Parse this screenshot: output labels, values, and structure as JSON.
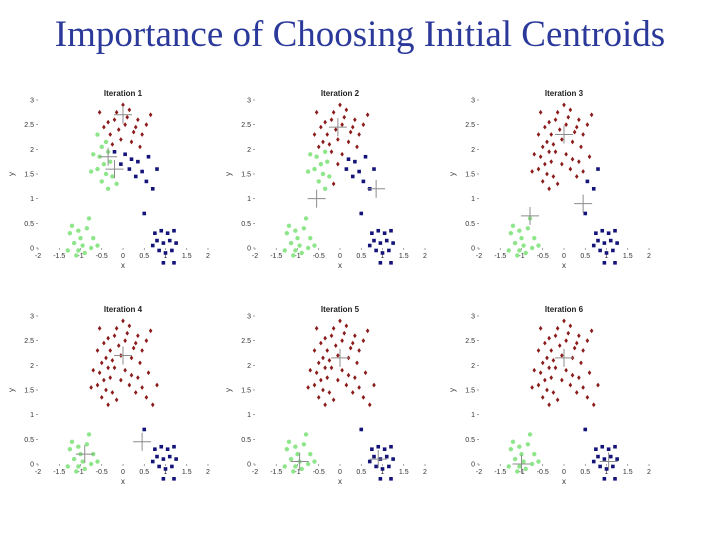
{
  "slide": {
    "title": "Importance of Choosing Initial Centroids"
  },
  "colors": {
    "red": "#8b1a1a",
    "green": "#8fe68a",
    "blue": "#13137a",
    "centroid": "#8c8c8c",
    "title": "#2b3a9a"
  },
  "chart_data": [
    {
      "type": "scatter",
      "title": "Iteration 1",
      "xlabel": "x",
      "ylabel": "y",
      "xlim": [
        -2,
        2
      ],
      "ylim": [
        0,
        3
      ],
      "xticks": [
        "-2",
        "-1.5",
        "-1",
        "-0.5",
        "0",
        "0.5",
        "1",
        "1.5",
        "2"
      ],
      "yticks": [
        "0",
        "0.5",
        "1",
        "1.5",
        "2",
        "2.5",
        "3"
      ],
      "assignment": "iter1",
      "centroids": [
        {
          "x": 0.0,
          "y": 2.7,
          "color": "red"
        },
        {
          "x": -0.35,
          "y": 1.85,
          "color": "green"
        },
        {
          "x": -0.2,
          "y": 1.6,
          "color": "blue"
        }
      ]
    },
    {
      "type": "scatter",
      "title": "Iteration 2",
      "xlabel": "x",
      "ylabel": "y",
      "xlim": [
        -2,
        2
      ],
      "ylim": [
        0,
        3
      ],
      "xticks": [
        "-2",
        "-1.5",
        "-1",
        "-0.5",
        "0",
        "0.5",
        "1",
        "1.5",
        "2"
      ],
      "yticks": [
        "0",
        "0.5",
        "1",
        "1.5",
        "2",
        "2.5",
        "3"
      ],
      "assignment": "iter2",
      "centroids": [
        {
          "x": -0.05,
          "y": 2.45,
          "color": "red"
        },
        {
          "x": -0.55,
          "y": 1.0,
          "color": "green"
        },
        {
          "x": 0.85,
          "y": 1.2,
          "color": "blue"
        }
      ]
    },
    {
      "type": "scatter",
      "title": "Iteration 3",
      "xlabel": "x",
      "ylabel": "y",
      "xlim": [
        -2,
        2
      ],
      "ylim": [
        0,
        3
      ],
      "xticks": [
        "-2",
        "-1.5",
        "-1",
        "-0.5",
        "0",
        "0.5",
        "1",
        "1.5",
        "2"
      ],
      "yticks": [
        "0",
        "0.5",
        "1",
        "1.5",
        "2",
        "2.5",
        "3"
      ],
      "assignment": "iter3",
      "centroids": [
        {
          "x": 0.0,
          "y": 2.3,
          "color": "red"
        },
        {
          "x": -0.8,
          "y": 0.65,
          "color": "green"
        },
        {
          "x": 0.45,
          "y": 0.9,
          "color": "blue"
        }
      ]
    },
    {
      "type": "scatter",
      "title": "Iteration 4",
      "xlabel": "x",
      "ylabel": "y",
      "xlim": [
        -2,
        2
      ],
      "ylim": [
        0,
        3
      ],
      "xticks": [
        "-2",
        "-1.5",
        "-1",
        "-0.5",
        "0",
        "0.5",
        "1",
        "1.5",
        "2"
      ],
      "yticks": [
        "0",
        "0.5",
        "1",
        "1.5",
        "2",
        "2.5",
        "3"
      ],
      "assignment": "final",
      "centroids": [
        {
          "x": 0.0,
          "y": 2.2,
          "color": "red"
        },
        {
          "x": -0.9,
          "y": 0.2,
          "color": "green"
        },
        {
          "x": 0.45,
          "y": 0.45,
          "color": "blue"
        }
      ]
    },
    {
      "type": "scatter",
      "title": "Iteration 5",
      "xlabel": "x",
      "ylabel": "y",
      "xlim": [
        -2,
        2
      ],
      "ylim": [
        0,
        3
      ],
      "xticks": [
        "-2",
        "-1.5",
        "-1",
        "-0.5",
        "0",
        "0.5",
        "1",
        "1.5",
        "2"
      ],
      "yticks": [
        "0",
        "0.5",
        "1",
        "1.5",
        "2",
        "2.5",
        "3"
      ],
      "assignment": "final",
      "centroids": [
        {
          "x": 0.0,
          "y": 2.15,
          "color": "red"
        },
        {
          "x": -0.95,
          "y": 0.05,
          "color": "green"
        },
        {
          "x": 0.9,
          "y": 0.1,
          "color": "blue"
        }
      ]
    },
    {
      "type": "scatter",
      "title": "Iteration 6",
      "xlabel": "x",
      "ylabel": "y",
      "xlim": [
        -2,
        2
      ],
      "ylim": [
        0,
        3
      ],
      "xticks": [
        "-2",
        "-1.5",
        "-1",
        "-0.5",
        "0",
        "0.5",
        "1",
        "1.5",
        "2"
      ],
      "yticks": [
        "0",
        "0.5",
        "1",
        "1.5",
        "2",
        "2.5",
        "3"
      ],
      "assignment": "final",
      "centroids": [
        {
          "x": 0.0,
          "y": 2.15,
          "color": "red"
        },
        {
          "x": -1.0,
          "y": 0.0,
          "color": "green"
        },
        {
          "x": 1.05,
          "y": 0.05,
          "color": "blue"
        }
      ]
    }
  ],
  "points": [
    {
      "x": -0.15,
      "y": 2.75,
      "iter1": "red",
      "iter2": "red",
      "iter3": "red",
      "final": "red"
    },
    {
      "x": 0.15,
      "y": 2.8,
      "iter1": "red",
      "iter2": "red",
      "iter3": "red",
      "final": "red"
    },
    {
      "x": 0.35,
      "y": 2.6,
      "iter1": "red",
      "iter2": "red",
      "iter3": "red",
      "final": "red"
    },
    {
      "x": -0.35,
      "y": 2.55,
      "iter1": "red",
      "iter2": "red",
      "iter3": "red",
      "final": "red"
    },
    {
      "x": 0.05,
      "y": 2.5,
      "iter1": "red",
      "iter2": "red",
      "iter3": "red",
      "final": "red"
    },
    {
      "x": -0.1,
      "y": 2.4,
      "iter1": "red",
      "iter2": "red",
      "iter3": "red",
      "final": "red"
    },
    {
      "x": 0.25,
      "y": 2.35,
      "iter1": "red",
      "iter2": "red",
      "iter3": "red",
      "final": "red"
    },
    {
      "x": -0.3,
      "y": 2.3,
      "iter1": "red",
      "iter2": "red",
      "iter3": "red",
      "final": "red"
    },
    {
      "x": 0.45,
      "y": 2.3,
      "iter1": "red",
      "iter2": "red",
      "iter3": "red",
      "final": "red"
    },
    {
      "x": -0.2,
      "y": 2.6,
      "iter1": "red",
      "iter2": "red",
      "iter3": "red",
      "final": "red"
    },
    {
      "x": 0.1,
      "y": 2.65,
      "iter1": "red",
      "iter2": "red",
      "iter3": "red",
      "final": "red"
    },
    {
      "x": 0.55,
      "y": 2.5,
      "iter1": "red",
      "iter2": "red",
      "iter3": "red",
      "final": "red"
    },
    {
      "x": -0.45,
      "y": 2.45,
      "iter1": "red",
      "iter2": "red",
      "iter3": "red",
      "final": "red"
    },
    {
      "x": 0.0,
      "y": 2.9,
      "iter1": "red",
      "iter2": "red",
      "iter3": "red",
      "final": "red"
    },
    {
      "x": 0.3,
      "y": 2.45,
      "iter1": "red",
      "iter2": "red",
      "iter3": "red",
      "final": "red"
    },
    {
      "x": -0.05,
      "y": 2.2,
      "iter1": "red",
      "iter2": "red",
      "iter3": "red",
      "final": "red"
    },
    {
      "x": 0.2,
      "y": 2.15,
      "iter1": "red",
      "iter2": "red",
      "iter3": "red",
      "final": "red"
    },
    {
      "x": -0.25,
      "y": 2.1,
      "iter1": "red",
      "iter2": "red",
      "iter3": "red",
      "final": "red"
    },
    {
      "x": 0.4,
      "y": 2.05,
      "iter1": "red",
      "iter2": "red",
      "iter3": "red",
      "final": "red"
    },
    {
      "x": 0.65,
      "y": 2.7,
      "iter1": "red",
      "iter2": "red",
      "iter3": "red",
      "final": "red"
    },
    {
      "x": -0.55,
      "y": 2.75,
      "iter1": "red",
      "iter2": "red",
      "iter3": "red",
      "final": "red"
    },
    {
      "x": -0.4,
      "y": 2.15,
      "iter1": "green",
      "iter2": "red",
      "iter3": "red",
      "final": "red"
    },
    {
      "x": -0.6,
      "y": 2.3,
      "iter1": "green",
      "iter2": "red",
      "iter3": "red",
      "final": "red"
    },
    {
      "x": -0.5,
      "y": 2.05,
      "iter1": "green",
      "iter2": "red",
      "iter3": "red",
      "final": "red"
    },
    {
      "x": -0.35,
      "y": 1.95,
      "iter1": "green",
      "iter2": "green",
      "iter3": "red",
      "final": "red"
    },
    {
      "x": -0.55,
      "y": 1.85,
      "iter1": "green",
      "iter2": "green",
      "iter3": "red",
      "final": "red"
    },
    {
      "x": -0.7,
      "y": 1.9,
      "iter1": "green",
      "iter2": "green",
      "iter3": "red",
      "final": "red"
    },
    {
      "x": -0.45,
      "y": 1.7,
      "iter1": "green",
      "iter2": "green",
      "iter3": "red",
      "final": "red"
    },
    {
      "x": -0.3,
      "y": 1.75,
      "iter1": "green",
      "iter2": "green",
      "iter3": "red",
      "final": "red"
    },
    {
      "x": -0.6,
      "y": 1.6,
      "iter1": "green",
      "iter2": "green",
      "iter3": "red",
      "final": "red"
    },
    {
      "x": -0.4,
      "y": 1.5,
      "iter1": "green",
      "iter2": "green",
      "iter3": "red",
      "final": "red"
    },
    {
      "x": -0.25,
      "y": 1.45,
      "iter1": "green",
      "iter2": "green",
      "iter3": "red",
      "final": "red"
    },
    {
      "x": -0.5,
      "y": 1.35,
      "iter1": "green",
      "iter2": "green",
      "iter3": "red",
      "final": "red"
    },
    {
      "x": -0.35,
      "y": 1.2,
      "iter1": "green",
      "iter2": "green",
      "iter3": "red",
      "final": "red"
    },
    {
      "x": -0.75,
      "y": 1.55,
      "iter1": "green",
      "iter2": "green",
      "iter3": "red",
      "final": "red"
    },
    {
      "x": -0.15,
      "y": 1.3,
      "iter1": "green",
      "iter2": "red",
      "iter3": "red",
      "final": "red"
    },
    {
      "x": -0.2,
      "y": 1.95,
      "iter1": "blue",
      "iter2": "red",
      "iter3": "red",
      "final": "red"
    },
    {
      "x": 0.05,
      "y": 1.9,
      "iter1": "blue",
      "iter2": "red",
      "iter3": "red",
      "final": "red"
    },
    {
      "x": 0.2,
      "y": 1.8,
      "iter1": "blue",
      "iter2": "blue",
      "iter3": "red",
      "final": "red"
    },
    {
      "x": 0.35,
      "y": 1.75,
      "iter1": "blue",
      "iter2": "blue",
      "iter3": "red",
      "final": "red"
    },
    {
      "x": -0.05,
      "y": 1.7,
      "iter1": "blue",
      "iter2": "red",
      "iter3": "red",
      "final": "red"
    },
    {
      "x": 0.15,
      "y": 1.6,
      "iter1": "blue",
      "iter2": "blue",
      "iter3": "red",
      "final": "red"
    },
    {
      "x": 0.45,
      "y": 1.55,
      "iter1": "blue",
      "iter2": "blue",
      "iter3": "red",
      "final": "red"
    },
    {
      "x": 0.6,
      "y": 1.85,
      "iter1": "blue",
      "iter2": "blue",
      "iter3": "red",
      "final": "red"
    },
    {
      "x": 0.3,
      "y": 1.45,
      "iter1": "blue",
      "iter2": "blue",
      "iter3": "red",
      "final": "red"
    },
    {
      "x": 0.55,
      "y": 1.35,
      "iter1": "blue",
      "iter2": "blue",
      "iter3": "blue",
      "final": "red"
    },
    {
      "x": 0.8,
      "y": 1.6,
      "iter1": "blue",
      "iter2": "blue",
      "iter3": "blue",
      "final": "red"
    },
    {
      "x": 0.7,
      "y": 1.2,
      "iter1": "blue",
      "iter2": "blue",
      "iter3": "blue",
      "final": "red"
    },
    {
      "x": 0.5,
      "y": 0.7,
      "iter1": "blue",
      "iter2": "blue",
      "iter3": "blue",
      "final": "blue"
    },
    {
      "x": -1.25,
      "y": 0.3,
      "iter1": "green",
      "iter2": "green",
      "iter3": "green",
      "final": "green"
    },
    {
      "x": -1.05,
      "y": 0.35,
      "iter1": "green",
      "iter2": "green",
      "iter3": "green",
      "final": "green"
    },
    {
      "x": -0.85,
      "y": 0.4,
      "iter1": "green",
      "iter2": "green",
      "iter3": "green",
      "final": "green"
    },
    {
      "x": -1.15,
      "y": 0.1,
      "iter1": "green",
      "iter2": "green",
      "iter3": "green",
      "final": "green"
    },
    {
      "x": -0.95,
      "y": 0.05,
      "iter1": "green",
      "iter2": "green",
      "iter3": "green",
      "final": "green"
    },
    {
      "x": -0.75,
      "y": 0.0,
      "iter1": "green",
      "iter2": "green",
      "iter3": "green",
      "final": "green"
    },
    {
      "x": -1.3,
      "y": -0.05,
      "iter1": "green",
      "iter2": "green",
      "iter3": "green",
      "final": "green"
    },
    {
      "x": -1.1,
      "y": -0.15,
      "iter1": "green",
      "iter2": "green",
      "iter3": "green",
      "final": "green"
    },
    {
      "x": -0.9,
      "y": -0.1,
      "iter1": "green",
      "iter2": "green",
      "iter3": "green",
      "final": "green"
    },
    {
      "x": -0.7,
      "y": 0.2,
      "iter1": "green",
      "iter2": "green",
      "iter3": "green",
      "final": "green"
    },
    {
      "x": -1.0,
      "y": 0.2,
      "iter1": "green",
      "iter2": "green",
      "iter3": "green",
      "final": "green"
    },
    {
      "x": -1.2,
      "y": 0.45,
      "iter1": "green",
      "iter2": "green",
      "iter3": "green",
      "final": "green"
    },
    {
      "x": -0.8,
      "y": 0.6,
      "iter1": "green",
      "iter2": "green",
      "iter3": "green",
      "final": "green"
    },
    {
      "x": -1.05,
      "y": -0.05,
      "iter1": "green",
      "iter2": "green",
      "iter3": "green",
      "final": "green"
    },
    {
      "x": -0.6,
      "y": 0.05,
      "iter1": "green",
      "iter2": "green",
      "iter3": "green",
      "final": "green"
    },
    {
      "x": 0.75,
      "y": 0.3,
      "iter1": "blue",
      "iter2": "blue",
      "iter3": "blue",
      "final": "blue"
    },
    {
      "x": 0.9,
      "y": 0.35,
      "iter1": "blue",
      "iter2": "blue",
      "iter3": "blue",
      "final": "blue"
    },
    {
      "x": 1.05,
      "y": 0.3,
      "iter1": "blue",
      "iter2": "blue",
      "iter3": "blue",
      "final": "blue"
    },
    {
      "x": 1.2,
      "y": 0.35,
      "iter1": "blue",
      "iter2": "blue",
      "iter3": "blue",
      "final": "blue"
    },
    {
      "x": 0.8,
      "y": 0.15,
      "iter1": "blue",
      "iter2": "blue",
      "iter3": "blue",
      "final": "blue"
    },
    {
      "x": 0.95,
      "y": 0.1,
      "iter1": "blue",
      "iter2": "blue",
      "iter3": "blue",
      "final": "blue"
    },
    {
      "x": 1.1,
      "y": 0.15,
      "iter1": "blue",
      "iter2": "blue",
      "iter3": "blue",
      "final": "blue"
    },
    {
      "x": 1.25,
      "y": 0.1,
      "iter1": "blue",
      "iter2": "blue",
      "iter3": "blue",
      "final": "blue"
    },
    {
      "x": 0.85,
      "y": -0.05,
      "iter1": "blue",
      "iter2": "blue",
      "iter3": "blue",
      "final": "blue"
    },
    {
      "x": 1.0,
      "y": -0.1,
      "iter1": "blue",
      "iter2": "blue",
      "iter3": "blue",
      "final": "blue"
    },
    {
      "x": 1.15,
      "y": -0.05,
      "iter1": "blue",
      "iter2": "blue",
      "iter3": "blue",
      "final": "blue"
    },
    {
      "x": 0.95,
      "y": -0.3,
      "iter1": "blue",
      "iter2": "blue",
      "iter3": "blue",
      "final": "blue"
    },
    {
      "x": 1.2,
      "y": -0.3,
      "iter1": "blue",
      "iter2": "blue",
      "iter3": "blue",
      "final": "blue"
    },
    {
      "x": 0.7,
      "y": 0.05,
      "iter1": "blue",
      "iter2": "blue",
      "iter3": "blue",
      "final": "blue"
    }
  ]
}
